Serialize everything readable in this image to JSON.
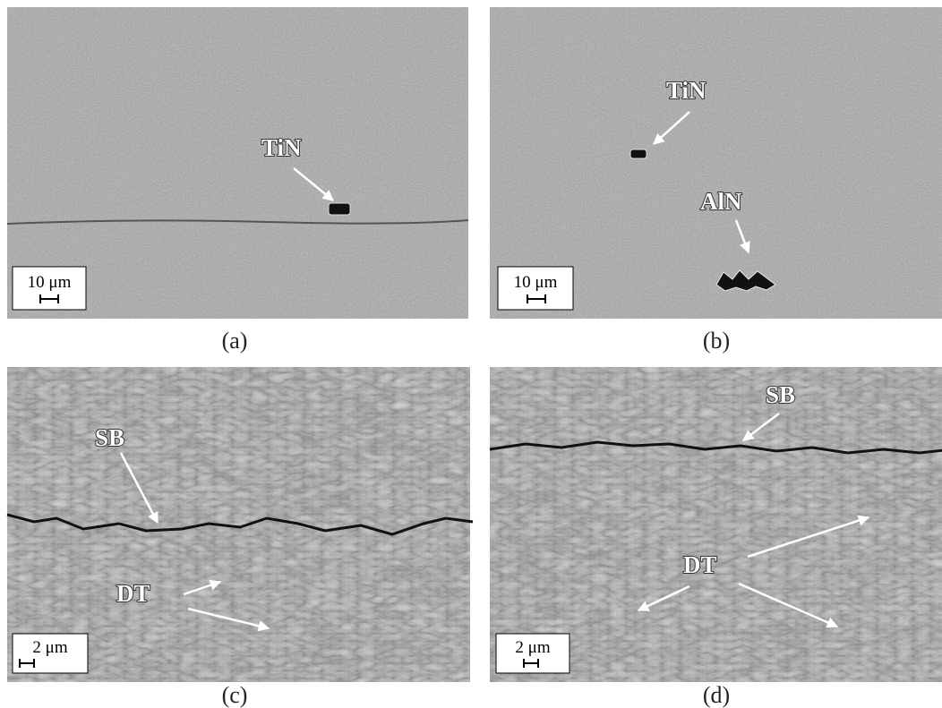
{
  "panels": [
    {
      "caption": "(a)",
      "scale_bar": "10 μm",
      "labels": [
        "TiN"
      ]
    },
    {
      "caption": "(b)",
      "scale_bar": "10 μm",
      "labels": [
        "TiN",
        "AlN"
      ]
    },
    {
      "caption": "(c)",
      "scale_bar": "2 μm",
      "labels": [
        "SB",
        "DT"
      ]
    },
    {
      "caption": "(d)",
      "scale_bar": "2 μm",
      "labels": [
        "SB",
        "DT"
      ]
    }
  ]
}
